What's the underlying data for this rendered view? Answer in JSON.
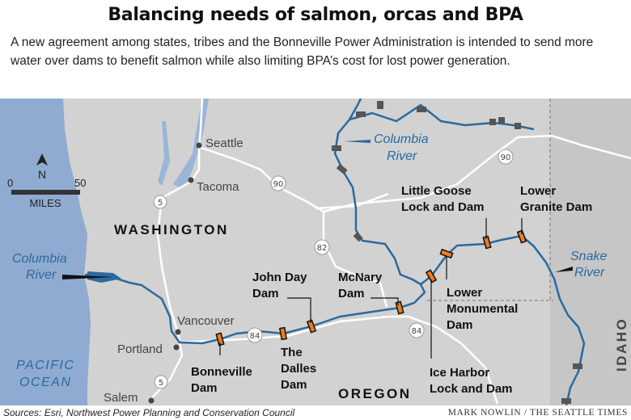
{
  "header": {
    "title": "Balancing needs of salmon, orcas and BPA",
    "subtitle": "A new agreement among states, tribes and the Bonneville Power Administration is intended to send more water over dams to benefit salmon while also limiting BPA’s cost for lost power generation."
  },
  "map": {
    "colors": {
      "water": "#8fabd1",
      "river": "#2a6a9e",
      "land": "#d4d4d4",
      "dam": "#f07c1e",
      "road": "#ffffff"
    },
    "scale": {
      "zero": "0",
      "max": "50",
      "unit": "MILES",
      "north": "N"
    },
    "states": {
      "washington": "WASHINGTON",
      "oregon": "OREGON",
      "idaho": "IDAHO"
    },
    "water_labels": {
      "pacific_line1": "PACIFIC",
      "pacific_line2": "OCEAN",
      "columbia_line1": "Columbia",
      "columbia_line2": "River",
      "snake_line1": "Snake",
      "snake_line2": "River"
    },
    "cities": {
      "seattle": "Seattle",
      "tacoma": "Tacoma",
      "vancouver": "Vancouver",
      "portland": "Portland",
      "salem": "Salem"
    },
    "highways": {
      "i5": "5",
      "i90": "90",
      "i82": "82",
      "i84": "84"
    },
    "dams": [
      {
        "line1": "Bonneville",
        "line2": "Dam"
      },
      {
        "line1": "The",
        "line2": "Dalles",
        "line3": "Dam"
      },
      {
        "line1": "John Day",
        "line2": "Dam"
      },
      {
        "line1": "McNary",
        "line2": "Dam"
      },
      {
        "line1": "Ice Harbor",
        "line2": "Lock and Dam"
      },
      {
        "line1": "Lower",
        "line2": "Monumental",
        "line3": "Dam"
      },
      {
        "line1": "Little Goose",
        "line2": "Lock and Dam"
      },
      {
        "line1": "Lower",
        "line2": "Granite Dam"
      }
    ]
  },
  "footer": {
    "sources": "Sources: Esri, Northwest Power Planning and Conservation Council",
    "credit": "MARK NOWLIN / THE SEATTLE TIMES"
  }
}
